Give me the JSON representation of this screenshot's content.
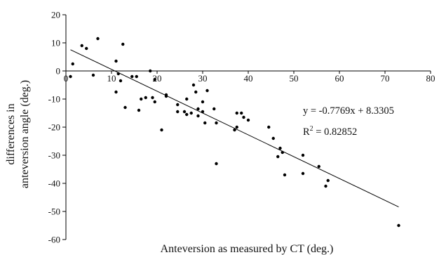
{
  "chart_data": {
    "type": "scatter",
    "title": "",
    "xlabel": "Anteversion as measured by CT (deg.)",
    "ylabel_line1": "differences in",
    "ylabel_line2": "anteversion angle (deg.)",
    "xlim": [
      0,
      80
    ],
    "ylim": [
      -60,
      20
    ],
    "x_ticks": [
      0,
      10,
      20,
      30,
      40,
      50,
      60,
      70,
      80
    ],
    "y_ticks": [
      20,
      10,
      0,
      -10,
      -20,
      -30,
      -40,
      -50,
      -60
    ],
    "grid": false,
    "trendline": {
      "slope": -0.7769,
      "intercept": 8.3305,
      "x_range": [
        1,
        73
      ]
    },
    "equation_text": "y = -0.7769x + 8.3305",
    "r2_prefix": "R",
    "r2_exp": "2",
    "r2_suffix": " = 0.82852",
    "marker_color": "#000000",
    "series": [
      {
        "points": [
          [
            1,
            -2
          ],
          [
            1.5,
            2.5
          ],
          [
            3.5,
            9
          ],
          [
            4.5,
            8
          ],
          [
            6,
            -1.5
          ],
          [
            7,
            11.5
          ],
          [
            11,
            -7.5
          ],
          [
            11,
            3.5
          ],
          [
            11.5,
            -1
          ],
          [
            12,
            -3.5
          ],
          [
            12.5,
            9.5
          ],
          [
            13,
            -13
          ],
          [
            14.5,
            -2
          ],
          [
            15.5,
            -2
          ],
          [
            16,
            -14
          ],
          [
            16.5,
            -10
          ],
          [
            17.5,
            -9.5
          ],
          [
            18.5,
            0
          ],
          [
            19,
            -9.5
          ],
          [
            19.5,
            -11
          ],
          [
            19.5,
            -3
          ],
          [
            21,
            -21
          ],
          [
            22,
            -9
          ],
          [
            22,
            -8.5
          ],
          [
            24.5,
            -12
          ],
          [
            24.5,
            -14.5
          ],
          [
            26,
            -14.5
          ],
          [
            26.5,
            -15.5
          ],
          [
            26.5,
            -10
          ],
          [
            27.5,
            -15
          ],
          [
            28,
            -5
          ],
          [
            28.5,
            -7.5
          ],
          [
            29,
            -13.5
          ],
          [
            29,
            -16
          ],
          [
            30,
            -11
          ],
          [
            30,
            -14.5
          ],
          [
            30.5,
            -18.5
          ],
          [
            31,
            -7
          ],
          [
            32.5,
            -13.5
          ],
          [
            33,
            -18.5
          ],
          [
            33,
            -33
          ],
          [
            37,
            -21
          ],
          [
            37.5,
            -15
          ],
          [
            37.5,
            -20
          ],
          [
            38.5,
            -15
          ],
          [
            39,
            -16.5
          ],
          [
            40,
            -17.5
          ],
          [
            44.5,
            -20
          ],
          [
            45.5,
            -24
          ],
          [
            46.5,
            -30.5
          ],
          [
            47,
            -27.5
          ],
          [
            47.5,
            -29
          ],
          [
            48,
            -37
          ],
          [
            52,
            -30
          ],
          [
            52,
            -36.5
          ],
          [
            55.5,
            -34
          ],
          [
            57,
            -41
          ],
          [
            57.5,
            -39
          ],
          [
            73,
            -55
          ]
        ]
      }
    ]
  }
}
